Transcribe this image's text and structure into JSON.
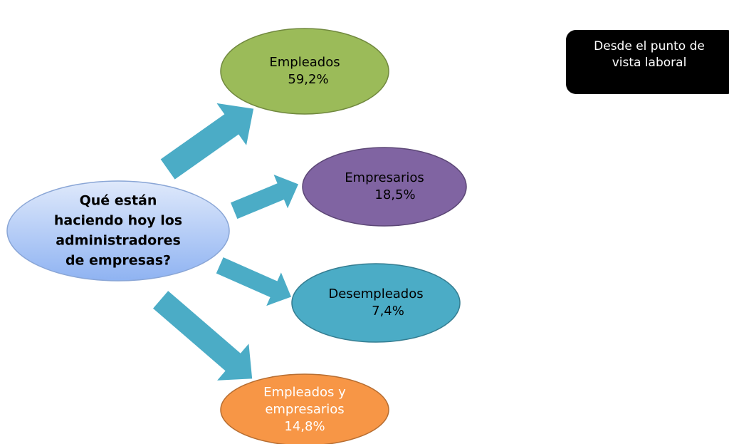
{
  "center": {
    "lines": [
      "Qué están",
      "haciendo hoy los",
      "administradores",
      "de empresas?"
    ]
  },
  "nodes": [
    {
      "lines": [
        "Empleados"
      ],
      "value": "59,2%"
    },
    {
      "lines": [
        "Empresarios"
      ],
      "value": "18,5%"
    },
    {
      "lines": [
        "Desempleados"
      ],
      "value": "7,4%"
    },
    {
      "lines": [
        "Empleados y",
        "empresarios"
      ],
      "value": "14,8%"
    }
  ],
  "note": {
    "lines": [
      "Desde el punto de",
      "vista laboral"
    ]
  }
}
